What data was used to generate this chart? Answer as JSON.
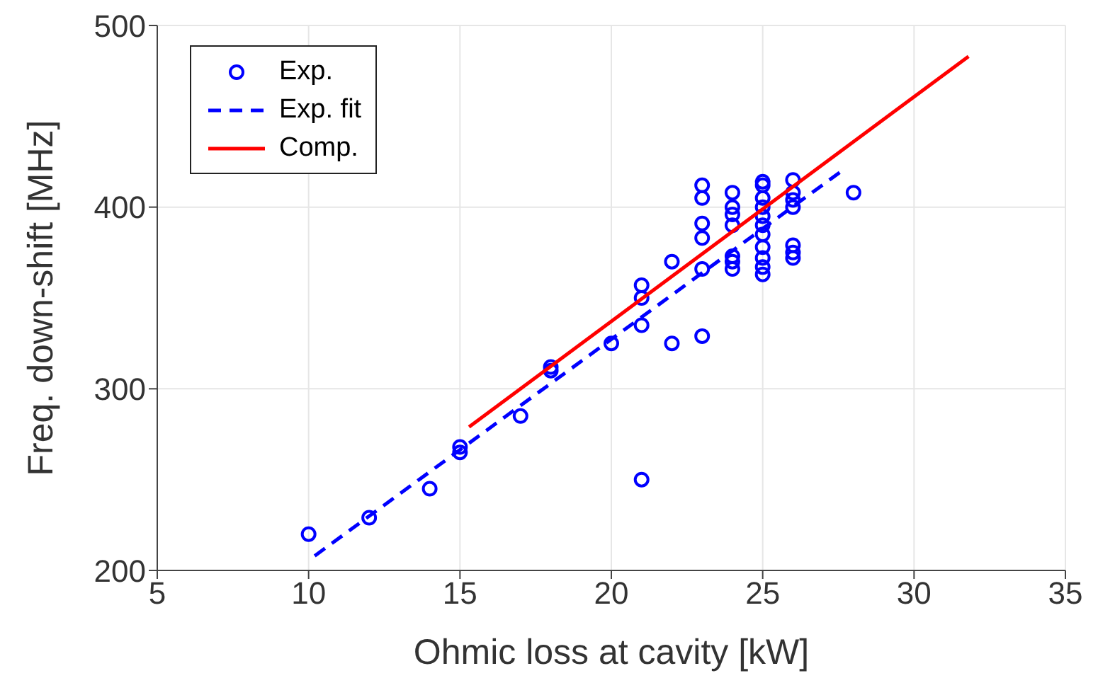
{
  "chart_data": {
    "type": "scatter",
    "xlabel": "Ohmic loss at cavity [kW]",
    "ylabel": "Freq. down-shift [MHz]",
    "xlim": [
      5,
      35
    ],
    "xticks": [
      5,
      10,
      15,
      20,
      25,
      30,
      35
    ],
    "ylim": [
      200,
      500
    ],
    "yticks": [
      200,
      300,
      400,
      500
    ],
    "grid": true,
    "legend": "top left",
    "series": [
      {
        "name": "Exp.",
        "type": "scatter",
        "color": "#0000ff",
        "marker": "circle",
        "x": [
          10,
          12,
          14,
          15,
          15,
          17,
          18,
          18,
          20,
          21,
          21,
          21,
          21,
          22,
          22,
          23,
          23,
          23,
          23,
          23,
          23,
          24,
          24,
          24,
          24,
          24,
          24,
          24,
          25,
          25,
          25,
          25,
          25,
          25,
          25,
          25,
          25,
          25,
          25,
          26,
          26,
          26,
          26,
          26,
          26,
          26,
          28
        ],
        "values": [
          220,
          229,
          245,
          265,
          268,
          285,
          310,
          312,
          325,
          250,
          335,
          350,
          357,
          325,
          370,
          329,
          366,
          383,
          391,
          405,
          412,
          366,
          370,
          373,
          390,
          396,
          400,
          408,
          363,
          367,
          372,
          378,
          385,
          390,
          395,
          400,
          405,
          412,
          414,
          372,
          375,
          379,
          400,
          404,
          408,
          415,
          408
        ]
      },
      {
        "name": "Exp. fit",
        "type": "line",
        "color": "#0000ff",
        "marker": "none",
        "line_style": "dashed",
        "x": [
          10.2,
          27.7
        ],
        "values": [
          208,
          421
        ]
      },
      {
        "name": "Comp.",
        "type": "line",
        "color": "#ff0000",
        "marker": "none",
        "line_style": "solid",
        "x": [
          15.3,
          31.8
        ],
        "values": [
          279,
          483
        ]
      }
    ]
  }
}
